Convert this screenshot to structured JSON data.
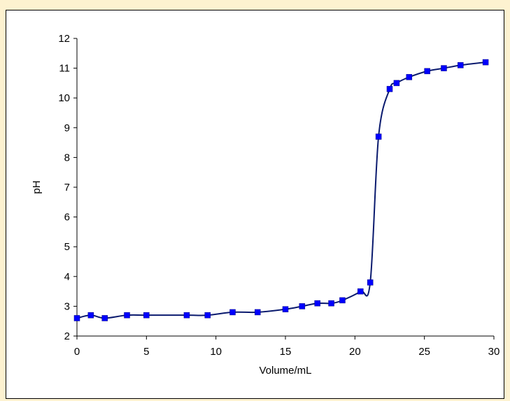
{
  "chart_data": {
    "type": "line",
    "title": "",
    "xlabel": "Volume/mL",
    "ylabel": "pH",
    "xlim": [
      0,
      30
    ],
    "ylim": [
      2,
      12
    ],
    "x_ticks": [
      "0",
      "5",
      "10",
      "15",
      "20",
      "25",
      "30"
    ],
    "y_ticks": [
      "2",
      "3",
      "4",
      "5",
      "6",
      "7",
      "8",
      "9",
      "10",
      "11",
      "12"
    ],
    "grid": false,
    "legend": "none",
    "smooth": true,
    "series": [
      {
        "color": "#0000ff",
        "line_color": "#0a1a6e",
        "marker": "square",
        "x": [
          0,
          1,
          2,
          3.6,
          5,
          7.9,
          9.4,
          11.2,
          13,
          15,
          16.2,
          17.3,
          18.3,
          19.1,
          20.4,
          21.1,
          21.7,
          22.5,
          23,
          23.9,
          25.2,
          26.4,
          27.6,
          29.4
        ],
        "y": [
          2.6,
          2.7,
          2.6,
          2.7,
          2.7,
          2.7,
          2.7,
          2.8,
          2.8,
          2.9,
          3.0,
          3.1,
          3.1,
          3.2,
          3.5,
          3.8,
          8.7,
          10.3,
          10.5,
          10.7,
          10.9,
          11.0,
          11.1,
          11.2
        ]
      }
    ]
  }
}
